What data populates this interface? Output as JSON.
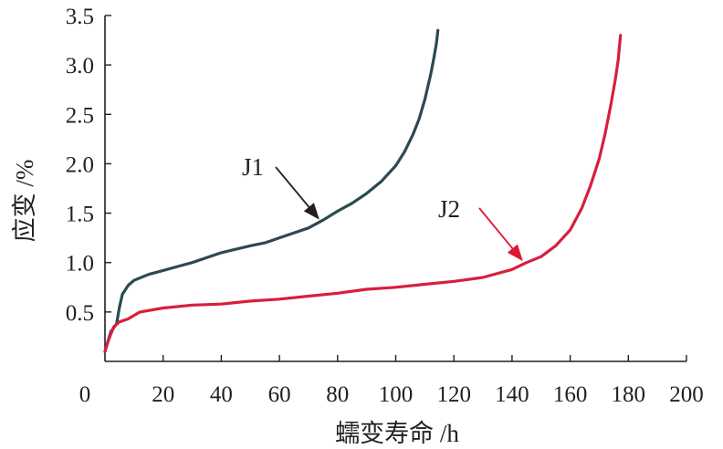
{
  "chart_data": {
    "type": "line",
    "title": "",
    "xlabel": "蠕变寿命 /h",
    "ylabel": "应变 /%",
    "xlim": [
      0,
      200
    ],
    "ylim": [
      0,
      3.5
    ],
    "xticks": [
      "0",
      "20",
      "40",
      "60",
      "80",
      "100",
      "120",
      "140",
      "160",
      "180",
      "200"
    ],
    "xtick_values": [
      0,
      20,
      40,
      60,
      80,
      100,
      120,
      140,
      160,
      180,
      200
    ],
    "yticks": [
      "0.5",
      "1.0",
      "1.5",
      "2.0",
      "2.5",
      "3.0",
      "3.5"
    ],
    "ytick_values": [
      0.5,
      1.0,
      1.5,
      2.0,
      2.5,
      3.0,
      3.5
    ],
    "grid": false,
    "series": [
      {
        "name": "J1",
        "color": "#2b4a50",
        "x": [
          0,
          2,
          4,
          5,
          6,
          8,
          10,
          15,
          20,
          25,
          30,
          40,
          50,
          55,
          60,
          70,
          75,
          80,
          85,
          90,
          95,
          100,
          103,
          106,
          108,
          110,
          112,
          113,
          114,
          114.5
        ],
        "y": [
          0.1,
          0.3,
          0.38,
          0.55,
          0.68,
          0.77,
          0.82,
          0.88,
          0.92,
          0.96,
          1.0,
          1.1,
          1.17,
          1.2,
          1.25,
          1.35,
          1.43,
          1.52,
          1.6,
          1.7,
          1.82,
          1.98,
          2.12,
          2.3,
          2.45,
          2.65,
          2.9,
          3.05,
          3.22,
          3.35
        ]
      },
      {
        "name": "J2",
        "color": "#d71f3c",
        "x": [
          0,
          1,
          3,
          5,
          8,
          12,
          20,
          30,
          40,
          50,
          60,
          70,
          80,
          90,
          100,
          110,
          120,
          130,
          140,
          145,
          150,
          155,
          160,
          164,
          167,
          170,
          172,
          174,
          175.5,
          176.5,
          177.3
        ],
        "y": [
          0.1,
          0.2,
          0.35,
          0.4,
          0.43,
          0.5,
          0.54,
          0.57,
          0.58,
          0.61,
          0.63,
          0.66,
          0.69,
          0.73,
          0.75,
          0.78,
          0.81,
          0.85,
          0.93,
          1.0,
          1.06,
          1.17,
          1.33,
          1.55,
          1.78,
          2.05,
          2.3,
          2.6,
          2.85,
          3.05,
          3.3
        ]
      }
    ],
    "annotations": [
      {
        "text": "J1",
        "points_to": [
          74,
          1.42
        ]
      },
      {
        "text": "J2",
        "points_to": [
          144,
          1.0
        ]
      }
    ]
  }
}
